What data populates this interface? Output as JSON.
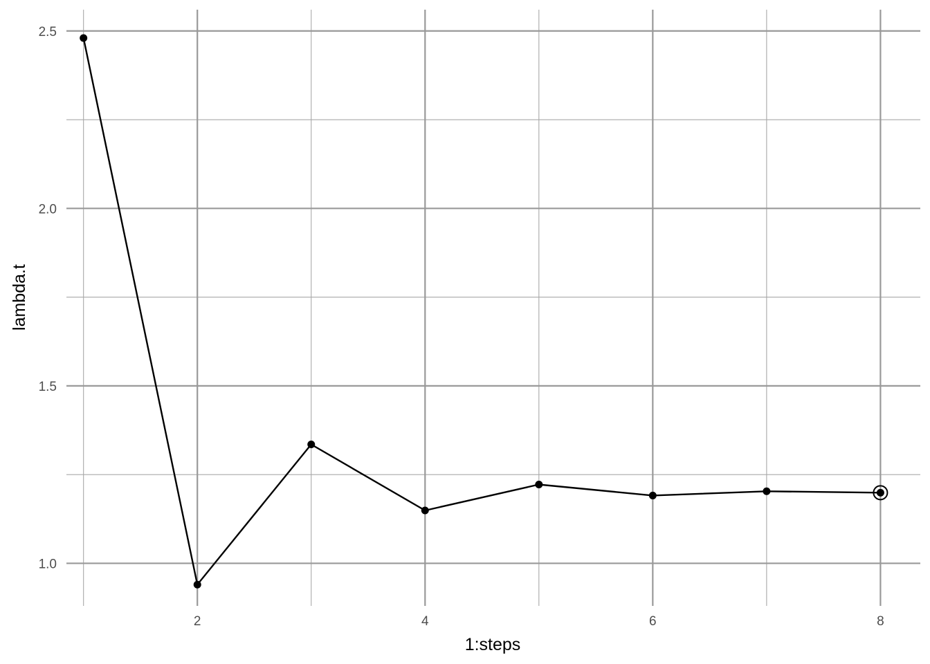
{
  "chart_data": {
    "type": "line",
    "title": "",
    "xlabel": "1:steps",
    "ylabel": "lambda.t",
    "x": [
      1,
      2,
      3,
      4,
      5,
      6,
      7,
      8
    ],
    "series": [
      {
        "values": [
          2.48,
          0.94,
          1.335,
          1.149,
          1.222,
          1.191,
          1.203,
          1.199
        ]
      }
    ],
    "highlight_point_index": 7,
    "xlim": [
      0.85,
      8.35
    ],
    "ylim": [
      0.88,
      2.56
    ],
    "xticks_major": [
      2,
      4,
      6,
      8
    ],
    "xticks_minor": [
      1,
      3,
      5,
      7
    ],
    "yticks_major": [
      1.0,
      1.5,
      2.0,
      2.5
    ],
    "yticks_minor": [
      1.25,
      1.75,
      2.25
    ],
    "xtick_labels": [
      "2",
      "4",
      "6",
      "8"
    ],
    "ytick_labels": [
      "1.0",
      "1.5",
      "2.0",
      "2.5"
    ],
    "grid": true,
    "legend": "none",
    "colors": {
      "line": "#000000",
      "grid_major": "#999999",
      "grid_minor": "#a8a8a8",
      "tick_text": "#4d4d4d"
    }
  }
}
